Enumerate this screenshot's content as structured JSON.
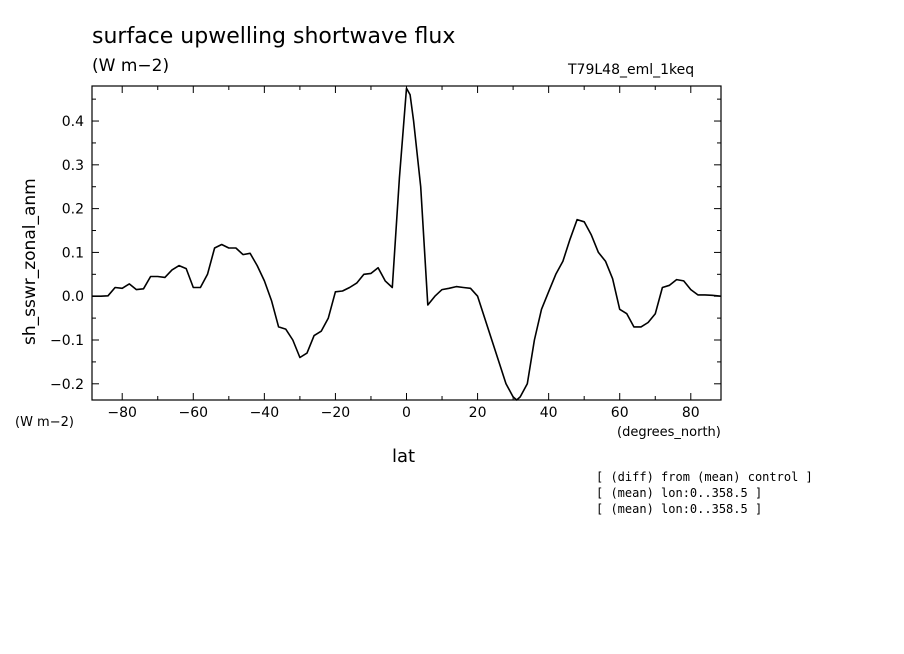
{
  "chart_data": {
    "type": "line",
    "title": "surface upwelling shortwave flux",
    "units": "(W m−2)",
    "dataset_label": "T79L48_eml_1keq",
    "xlabel": "lat",
    "ylabel": "sh_sswr_zonal_anm",
    "x_units": "(degrees_north)",
    "y_units": "(W m−2)",
    "xlim": [
      -88.5,
      88.5
    ],
    "ylim": [
      -0.237,
      0.48
    ],
    "x_ticks": [
      -80,
      -60,
      -40,
      -20,
      0,
      20,
      40,
      60,
      80
    ],
    "y_ticks": [
      -0.2,
      -0.1,
      0.0,
      0.1,
      0.2,
      0.3,
      0.4
    ],
    "x_tick_labels": [
      "−80",
      "−60",
      "−40",
      "−20",
      "0",
      "20",
      "40",
      "60",
      "80"
    ],
    "y_tick_labels": [
      "−0.2",
      "−0.1",
      "0.0",
      "0.1",
      "0.2",
      "0.3",
      "0.4"
    ],
    "series": [
      {
        "x": [
          -88.5,
          -86,
          -84,
          -82,
          -80,
          -78,
          -76,
          -74,
          -72,
          -70,
          -68,
          -66,
          -64,
          -62,
          -60,
          -58,
          -56,
          -54,
          -52,
          -50,
          -48,
          -46,
          -44,
          -42,
          -40,
          -38,
          -36,
          -34,
          -32,
          -30,
          -28,
          -26,
          -24,
          -22,
          -20,
          -18,
          -16,
          -14,
          -12,
          -10,
          -8,
          -6,
          -4,
          -2,
          0,
          1,
          2,
          4,
          6,
          8,
          10,
          12,
          14,
          16,
          18,
          20,
          22,
          24,
          26,
          28,
          30,
          31,
          32,
          34,
          36,
          38,
          40,
          42,
          44,
          46,
          48,
          50,
          52,
          54,
          56,
          58,
          60,
          62,
          64,
          66,
          68,
          70,
          72,
          74,
          76,
          78,
          80,
          82,
          84,
          86,
          88.5
        ],
        "y": [
          0.0,
          0.0,
          0.001,
          0.02,
          0.018,
          0.028,
          0.015,
          0.017,
          0.045,
          0.045,
          0.043,
          0.06,
          0.07,
          0.063,
          0.02,
          0.02,
          0.05,
          0.11,
          0.118,
          0.11,
          0.11,
          0.095,
          0.098,
          0.07,
          0.035,
          -0.01,
          -0.07,
          -0.075,
          -0.1,
          -0.14,
          -0.13,
          -0.09,
          -0.08,
          -0.05,
          0.01,
          0.012,
          0.02,
          0.03,
          0.05,
          0.052,
          0.065,
          0.035,
          0.02,
          0.27,
          0.475,
          0.46,
          0.4,
          0.25,
          -0.02,
          0.0,
          0.015,
          0.018,
          0.022,
          0.02,
          0.018,
          0.0,
          -0.05,
          -0.1,
          -0.15,
          -0.2,
          -0.23,
          -0.237,
          -0.23,
          -0.2,
          -0.1,
          -0.03,
          0.01,
          0.05,
          0.08,
          0.13,
          0.175,
          0.17,
          0.14,
          0.1,
          0.08,
          0.04,
          -0.03,
          -0.04,
          -0.07,
          -0.07,
          -0.06,
          -0.04,
          0.02,
          0.025,
          0.038,
          0.035,
          0.015,
          0.003,
          0.003,
          0.002,
          0.0
        ]
      }
    ]
  },
  "notes": [
    "[ (diff) from (mean) control ]",
    "[ (mean) lon:0..358.5 ]",
    "[ (mean) lon:0..358.5 ]"
  ]
}
